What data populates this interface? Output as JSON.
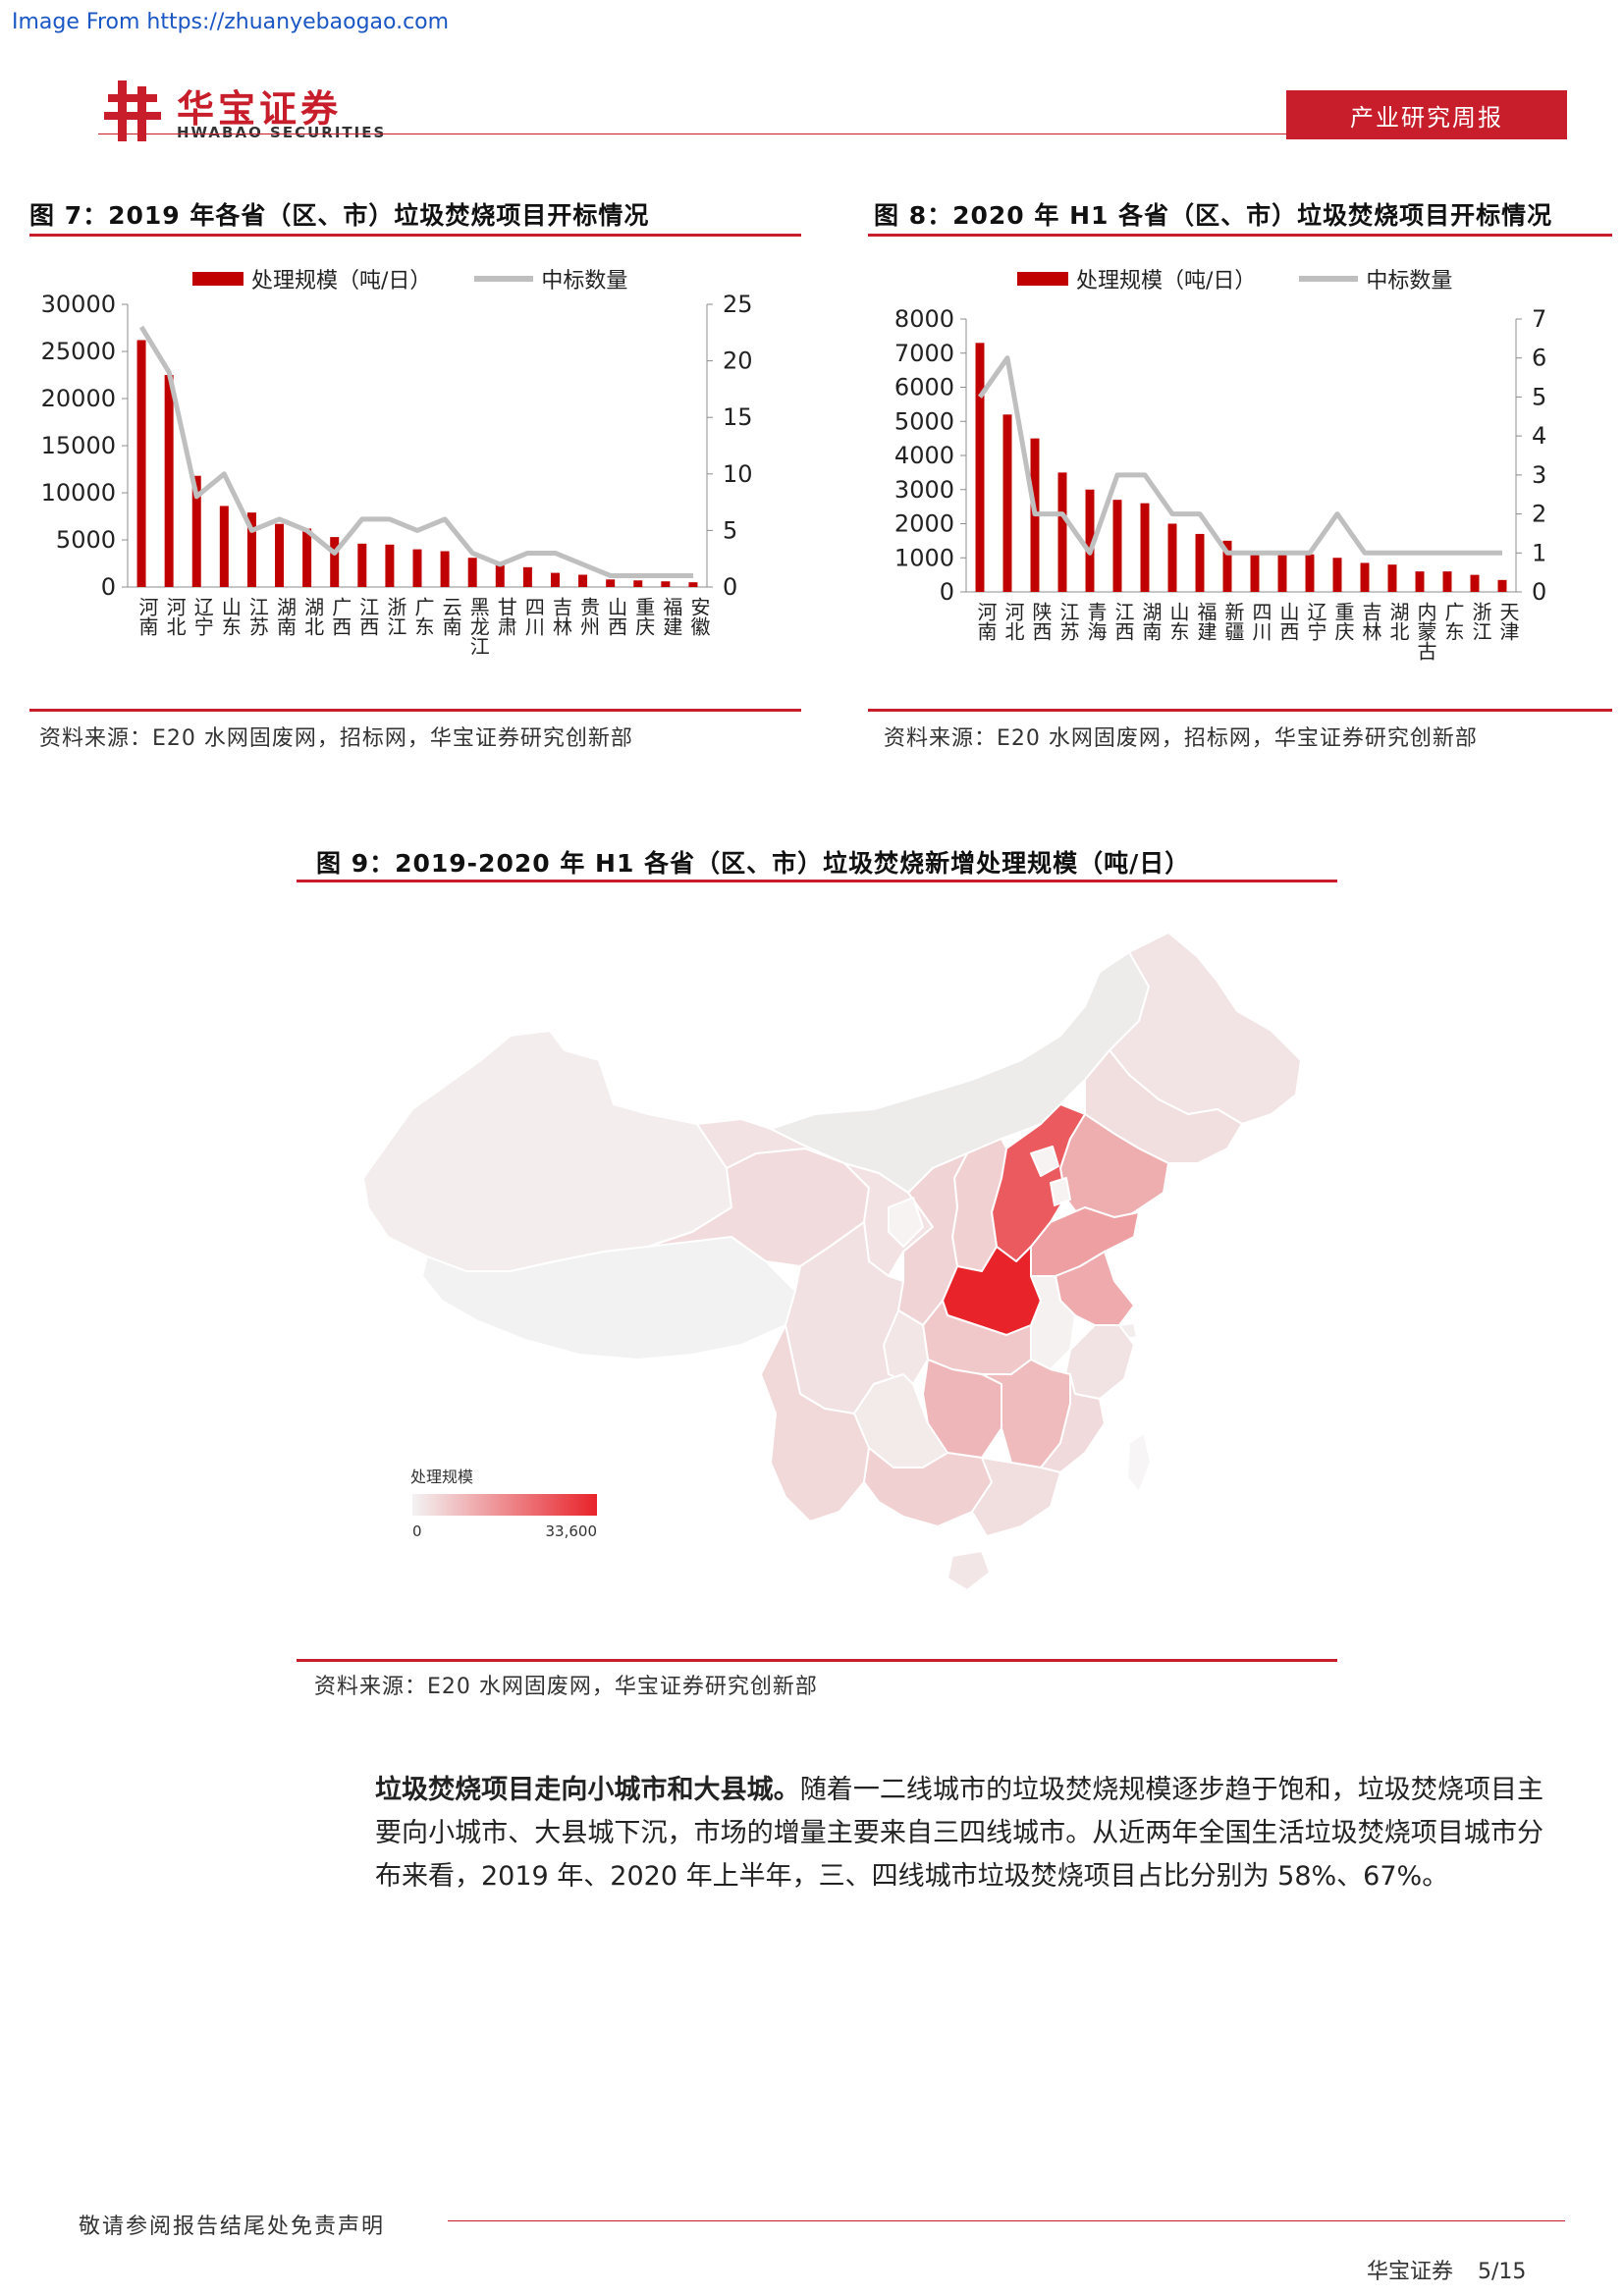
{
  "source_url": "Image From https://zhuanyebaogao.com",
  "header": {
    "logo_cn": "华宝证券",
    "logo_en": "HWABAO SECURITIES",
    "badge": "产业研究周报"
  },
  "figures": {
    "fig7": {
      "title": "图 7：2019 年各省（区、市）垃圾焚烧项目开标情况",
      "legend_bar": "处理规模（吨/日）",
      "legend_line": "中标数量",
      "source": "资料来源：E20 水网固废网，招标网，华宝证券研究创新部"
    },
    "fig8": {
      "title": "图 8：2020 年 H1 各省（区、市）垃圾焚烧项目开标情况",
      "legend_bar": "处理规模（吨/日）",
      "legend_line": "中标数量",
      "source": "资料来源：E20 水网固废网，招标网，华宝证券研究创新部"
    },
    "fig9": {
      "title": "图 9：2019-2020 年 H1 各省（区、市）垃圾焚烧新增处理规模（吨/日）",
      "legend_title": "处理规模",
      "legend_min": "0",
      "legend_max": "33,600",
      "source": "资料来源：E20 水网固废网，华宝证券研究创新部"
    }
  },
  "chart_data": [
    {
      "type": "bar",
      "categories": [
        "河南",
        "河北",
        "辽宁",
        "山东",
        "江苏",
        "湖南",
        "湖北",
        "广西",
        "江西",
        "浙江",
        "广东",
        "云南",
        "黑龙江",
        "甘肃",
        "四川",
        "吉林",
        "贵州",
        "山西",
        "重庆",
        "福建",
        "安徽"
      ],
      "series": [
        {
          "name": "处理规模（吨/日）",
          "type": "bar",
          "axis": "left",
          "values": [
            26200,
            22500,
            11800,
            8600,
            7900,
            6700,
            6200,
            5300,
            4600,
            4500,
            4000,
            3800,
            3100,
            2400,
            2100,
            1500,
            1300,
            800,
            700,
            600,
            500
          ]
        },
        {
          "name": "中标数量",
          "type": "line",
          "axis": "right",
          "values": [
            23,
            19,
            8,
            10,
            5,
            6,
            5,
            3,
            6,
            6,
            5,
            6,
            3,
            2,
            3,
            3,
            2,
            1,
            1,
            1,
            1
          ]
        }
      ],
      "ylim": [
        0,
        30000
      ],
      "y2lim": [
        0,
        25
      ],
      "yticks": [
        0,
        5000,
        10000,
        15000,
        20000,
        25000,
        30000
      ],
      "y2ticks": [
        0,
        5,
        10,
        15,
        20,
        25
      ],
      "grid": false,
      "legend": "top"
    },
    {
      "type": "bar",
      "categories": [
        "河南",
        "河北",
        "陕西",
        "江苏",
        "青海",
        "江西",
        "湖南",
        "山东",
        "福建",
        "新疆",
        "四川",
        "山西",
        "辽宁",
        "重庆",
        "吉林",
        "湖北",
        "内蒙古",
        "广东",
        "浙江",
        "天津"
      ],
      "series": [
        {
          "name": "处理规模（吨/日）",
          "type": "bar",
          "axis": "left",
          "values": [
            7300,
            5200,
            4500,
            3500,
            3000,
            2700,
            2600,
            2000,
            1700,
            1500,
            1100,
            1100,
            1100,
            1000,
            850,
            800,
            600,
            600,
            500,
            350
          ]
        },
        {
          "name": "中标数量",
          "type": "line",
          "axis": "right",
          "values": [
            5,
            6,
            2,
            2,
            1,
            3,
            3,
            2,
            2,
            1,
            1,
            1,
            1,
            2,
            1,
            1,
            1,
            1,
            1,
            1
          ]
        }
      ],
      "ylim": [
        0,
        8000
      ],
      "y2lim": [
        0,
        7
      ],
      "yticks": [
        0,
        1000,
        2000,
        3000,
        4000,
        5000,
        6000,
        7000,
        8000
      ],
      "y2ticks": [
        0,
        1,
        2,
        3,
        4,
        5,
        6,
        7
      ],
      "grid": false,
      "legend": "top"
    }
  ],
  "map": {
    "color_min": "#f3f3f3",
    "color_max": "#e8232a"
  },
  "body": {
    "lead": "垃圾焚烧项目走向小城市和大县城。",
    "text": "随着一二线城市的垃圾焚烧规模逐步趋于饱和，垃圾焚烧项目主要向小城市、大县城下沉，市场的增量主要来自三四线城市。从近两年全国生活垃圾焚烧项目城市分布来看，2019 年、2020 年上半年，三、四线城市垃圾焚烧项目占比分别为 58%、67%。"
  },
  "footer": {
    "disclaimer": "敬请参阅报告结尾处免责声明",
    "company": "华宝证券",
    "page": "5/15"
  },
  "colors": {
    "brand_red": "#c81e2b",
    "bar_red": "#c00000",
    "line_grey": "#bfbfbf"
  }
}
